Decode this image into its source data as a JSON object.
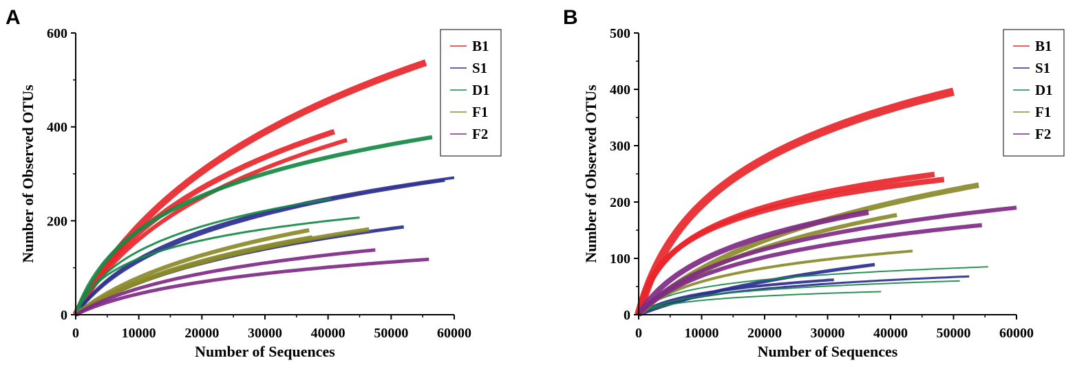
{
  "chart_data": [
    {
      "panel": "A",
      "type": "line",
      "xlabel": "Number of Sequences",
      "ylabel": "Number of Observed OTUs",
      "xlim": [
        0,
        60000
      ],
      "ylim": [
        0,
        600
      ],
      "xticks": [
        0,
        10000,
        20000,
        30000,
        40000,
        50000,
        60000
      ],
      "yticks": [
        0,
        200,
        400,
        600
      ],
      "legend_position": "top-right",
      "legend": [
        {
          "name": "B1",
          "color": "#e8262b"
        },
        {
          "name": "S1",
          "color": "#2b2f8e"
        },
        {
          "name": "D1",
          "color": "#138a45"
        },
        {
          "name": "F1",
          "color": "#8a8a2a"
        },
        {
          "name": "F2",
          "color": "#7e2a86"
        }
      ],
      "series": [
        {
          "name": "B1",
          "color": "#e8262b",
          "max_x": 55500,
          "final_y": 537,
          "k": 12000,
          "band": 10
        },
        {
          "name": "B1",
          "color": "#e8262b",
          "max_x": 41000,
          "final_y": 390,
          "k": 8000,
          "band": 8
        },
        {
          "name": "B1",
          "color": "#e8262b",
          "max_x": 43000,
          "final_y": 372,
          "k": 8500,
          "band": 6
        },
        {
          "name": "S1",
          "color": "#2b2f8e",
          "max_x": 60000,
          "final_y": 292,
          "k": 6000,
          "band": 4
        },
        {
          "name": "S1",
          "color": "#2b2f8e",
          "max_x": 58500,
          "final_y": 286,
          "k": 7000,
          "band": 4
        },
        {
          "name": "S1",
          "color": "#2b2f8e",
          "max_x": 52000,
          "final_y": 187,
          "k": 12000,
          "band": 5
        },
        {
          "name": "D1",
          "color": "#138a45",
          "max_x": 56500,
          "final_y": 378,
          "k": 3500,
          "band": 6
        },
        {
          "name": "D1",
          "color": "#138a45",
          "max_x": 40500,
          "final_y": 247,
          "k": 3000,
          "band": 3
        },
        {
          "name": "D1",
          "color": "#138a45",
          "max_x": 45000,
          "final_y": 207,
          "k": 1800,
          "band": 3
        },
        {
          "name": "F1",
          "color": "#8a8a2a",
          "max_x": 37000,
          "final_y": 180,
          "k": 11000,
          "band": 6
        },
        {
          "name": "F1",
          "color": "#8a8a2a",
          "max_x": 37500,
          "final_y": 165,
          "k": 12000,
          "band": 6
        },
        {
          "name": "F1",
          "color": "#8a8a2a",
          "max_x": 46500,
          "final_y": 182,
          "k": 13000,
          "band": 6
        },
        {
          "name": "F2",
          "color": "#7e2a86",
          "max_x": 47500,
          "final_y": 138,
          "k": 9000,
          "band": 5
        },
        {
          "name": "F2",
          "color": "#7e2a86",
          "max_x": 56000,
          "final_y": 118,
          "k": 9000,
          "band": 5
        }
      ]
    },
    {
      "panel": "B",
      "type": "line",
      "xlabel": "Number of Sequences",
      "ylabel": "Number of Observed OTUs",
      "xlim": [
        0,
        60000
      ],
      "ylim": [
        0,
        500
      ],
      "xticks": [
        0,
        10000,
        20000,
        30000,
        40000,
        50000,
        60000
      ],
      "yticks": [
        0,
        100,
        200,
        300,
        400,
        500
      ],
      "legend_position": "top-right",
      "legend": [
        {
          "name": "B1",
          "color": "#e8262b"
        },
        {
          "name": "S1",
          "color": "#2b2f8e"
        },
        {
          "name": "D1",
          "color": "#138a45"
        },
        {
          "name": "F1",
          "color": "#8a8a2a"
        },
        {
          "name": "F2",
          "color": "#7e2a86"
        }
      ],
      "series": [
        {
          "name": "B1",
          "color": "#e8262b",
          "max_x": 50000,
          "final_y": 396,
          "k": 3500,
          "band": 12
        },
        {
          "name": "B1",
          "color": "#e8262b",
          "max_x": 47000,
          "final_y": 249,
          "k": 1500,
          "band": 8
        },
        {
          "name": "B1",
          "color": "#e8262b",
          "max_x": 48500,
          "final_y": 240,
          "k": 1200,
          "band": 8
        },
        {
          "name": "S1",
          "color": "#2b2f8e",
          "max_x": 37500,
          "final_y": 89,
          "k": 18000,
          "band": 5
        },
        {
          "name": "S1",
          "color": "#2b2f8e",
          "max_x": 31000,
          "final_y": 62,
          "k": 3000,
          "band": 4
        },
        {
          "name": "S1",
          "color": "#2b2f8e",
          "max_x": 52500,
          "final_y": 68,
          "k": 4000,
          "band": 3
        },
        {
          "name": "D1",
          "color": "#138a45",
          "max_x": 55500,
          "final_y": 85,
          "k": 1500,
          "band": 2
        },
        {
          "name": "D1",
          "color": "#138a45",
          "max_x": 51000,
          "final_y": 60,
          "k": 2000,
          "band": 2
        },
        {
          "name": "D1",
          "color": "#138a45",
          "max_x": 38500,
          "final_y": 41,
          "k": 1500,
          "band": 2
        },
        {
          "name": "F1",
          "color": "#8a8a2a",
          "max_x": 54000,
          "final_y": 230,
          "k": 12000,
          "band": 8
        },
        {
          "name": "F1",
          "color": "#8a8a2a",
          "max_x": 41000,
          "final_y": 177,
          "k": 10000,
          "band": 6
        },
        {
          "name": "F1",
          "color": "#8a8a2a",
          "max_x": 43500,
          "final_y": 113,
          "k": 3500,
          "band": 4
        },
        {
          "name": "F2",
          "color": "#7e2a86",
          "max_x": 36500,
          "final_y": 182,
          "k": 4500,
          "band": 8
        },
        {
          "name": "F2",
          "color": "#7e2a86",
          "max_x": 60000,
          "final_y": 190,
          "k": 6000,
          "band": 6
        },
        {
          "name": "F2",
          "color": "#7e2a86",
          "max_x": 54500,
          "final_y": 159,
          "k": 5500,
          "band": 6
        }
      ]
    }
  ]
}
